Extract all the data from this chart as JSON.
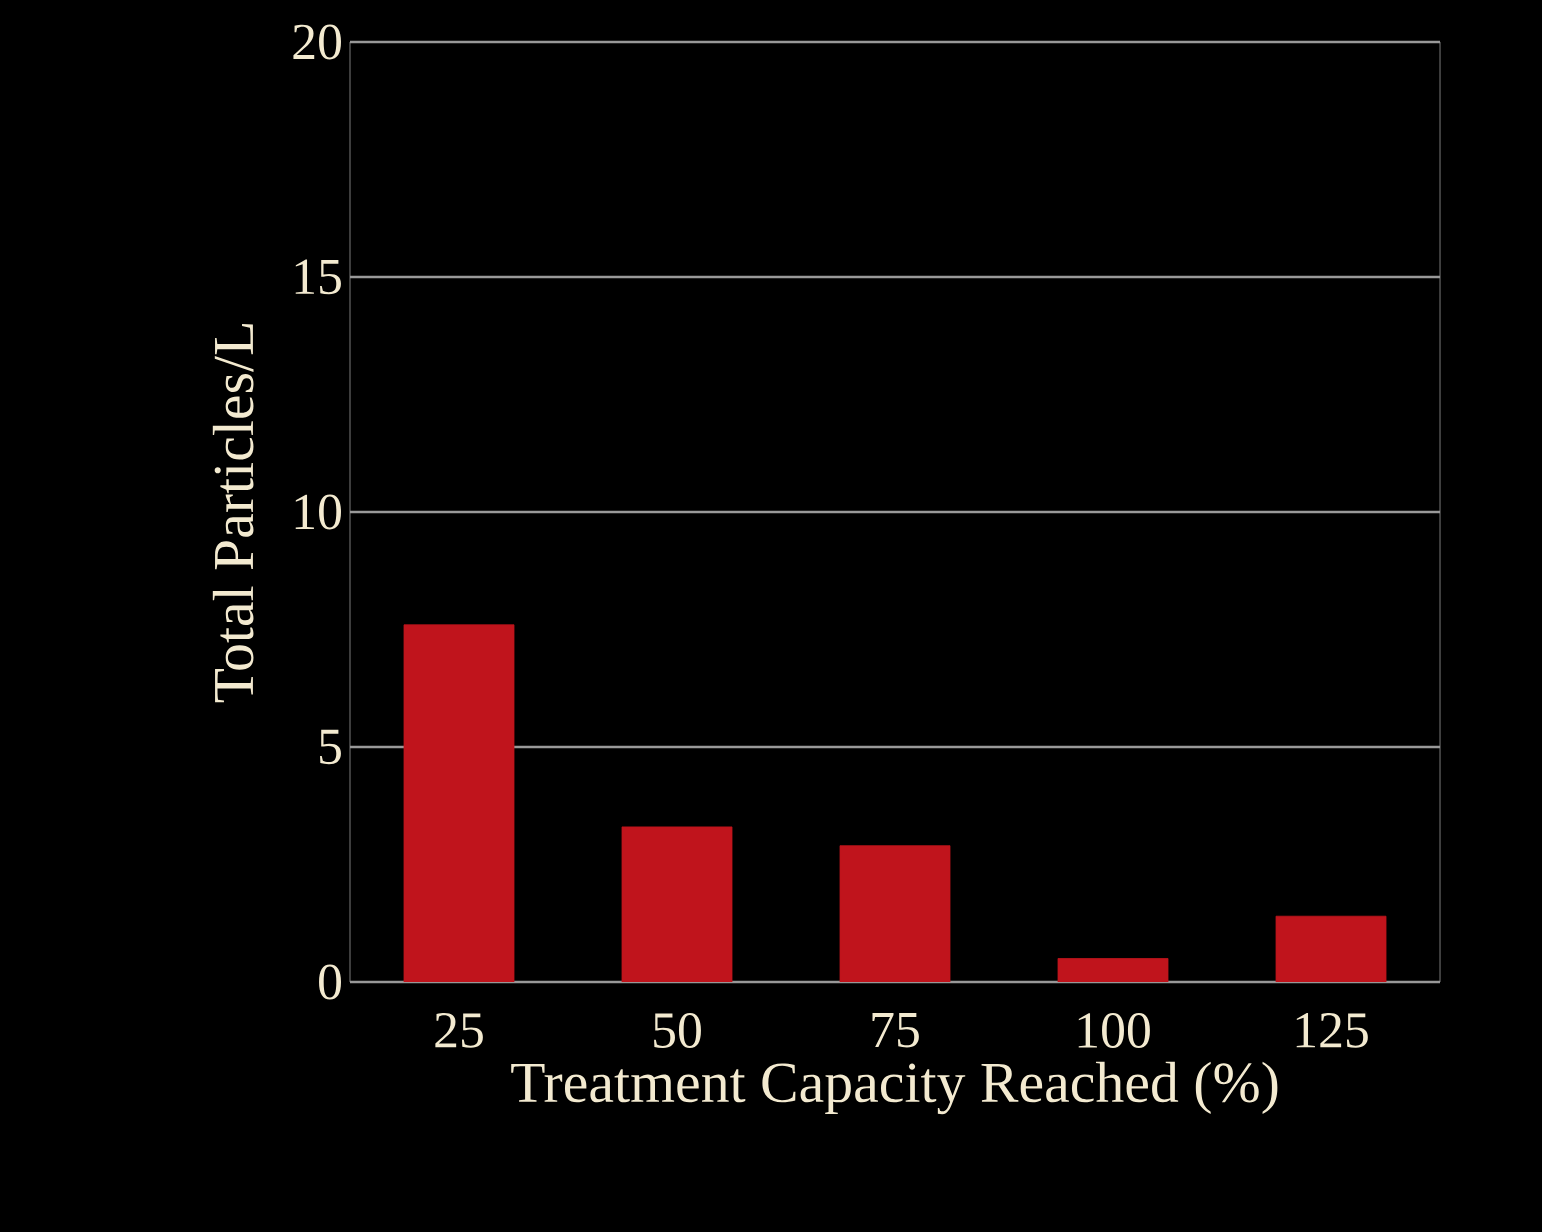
{
  "chart_data": {
    "type": "bar",
    "categories": [
      "25",
      "50",
      "75",
      "100",
      "125"
    ],
    "values": [
      7.6,
      3.3,
      2.9,
      0.5,
      1.4
    ],
    "color": "#c0141c",
    "xlabel": "Treatment Capacity Reached (%)",
    "ylabel": "Total Particles/L",
    "ylim": [
      0,
      20
    ],
    "yticks": [
      0,
      5,
      10,
      15,
      20
    ],
    "grid": "y"
  }
}
